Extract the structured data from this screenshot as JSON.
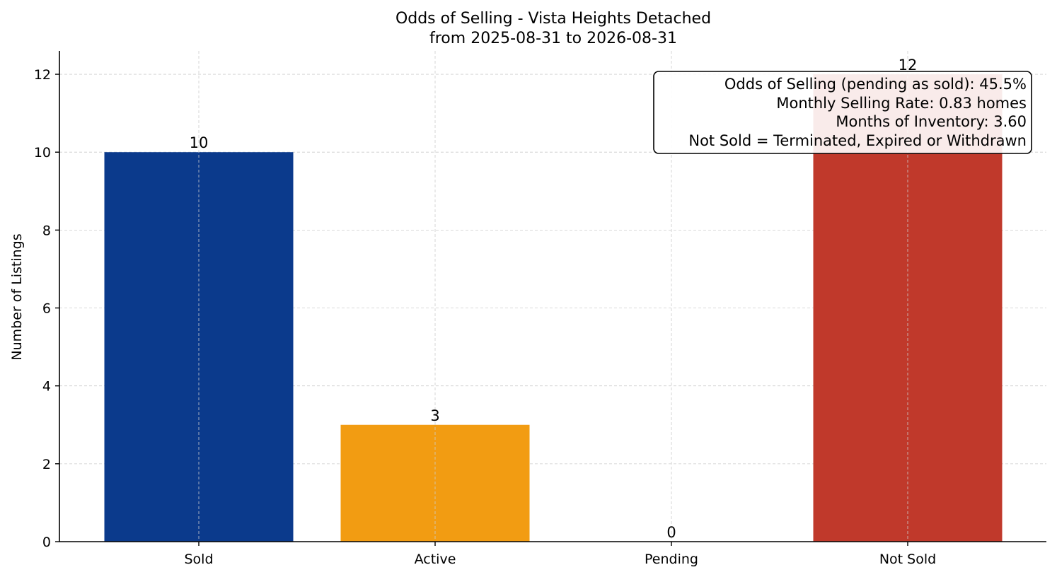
{
  "chart_data": {
    "type": "bar",
    "title": "Odds of Selling - Vista Heights Detached",
    "subtitle": "from 2025-08-31 to 2026-08-31",
    "xlabel": "",
    "ylabel": "Number of Listings",
    "categories": [
      "Sold",
      "Active",
      "Pending",
      "Not Sold"
    ],
    "values": [
      10,
      3,
      0,
      12
    ],
    "value_labels": [
      "10",
      "3",
      "0",
      "12"
    ],
    "colors": [
      "#0b3a8c",
      "#f29c12",
      "#1f77b4",
      "#c0392b"
    ],
    "ylim": [
      0,
      12.6
    ],
    "yticks": [
      0,
      2,
      4,
      6,
      8,
      10,
      12
    ],
    "ytick_labels": [
      "0",
      "2",
      "4",
      "6",
      "8",
      "10",
      "12"
    ],
    "grid": true,
    "annotation_box": {
      "placement": "top-right",
      "lines": [
        "Odds of Selling (pending as sold): 45.5%",
        "Monthly Selling Rate: 0.83 homes",
        "Months of Inventory: 3.60",
        "Not Sold = Terminated, Expired or Withdrawn"
      ]
    }
  }
}
